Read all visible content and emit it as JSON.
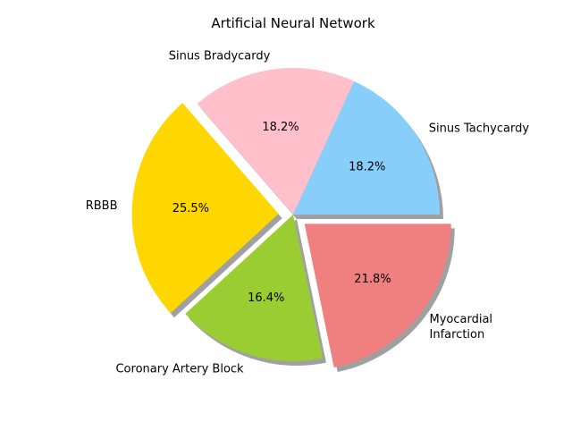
{
  "chart_data": {
    "type": "pie",
    "title": "Artificial Neural Network",
    "categories": [
      "Sinus Tachycardy",
      "Sinus Bradycardy",
      "RBBB",
      "Coronary Artery Block",
      "Myocardial Infarction"
    ],
    "label_lines": [
      [
        "Sinus Tachycardy"
      ],
      [
        "Sinus Bradycardy"
      ],
      [
        "RBBB"
      ],
      [
        "Coronary Artery Block"
      ],
      [
        "Myocardial",
        "Infarction"
      ]
    ],
    "values": [
      18.2,
      18.2,
      25.5,
      16.4,
      21.8
    ],
    "percent_labels": [
      "18.2%",
      "18.2%",
      "25.5%",
      "16.4%",
      "21.8%"
    ],
    "colors": [
      "#87cefa",
      "#ffc0cb",
      "#ffd700",
      "#9acd32",
      "#f08080"
    ],
    "explode": [
      0,
      0,
      0.1,
      0,
      0.1
    ],
    "start_angle_deg": 0,
    "shadow": true,
    "legend": "none"
  }
}
